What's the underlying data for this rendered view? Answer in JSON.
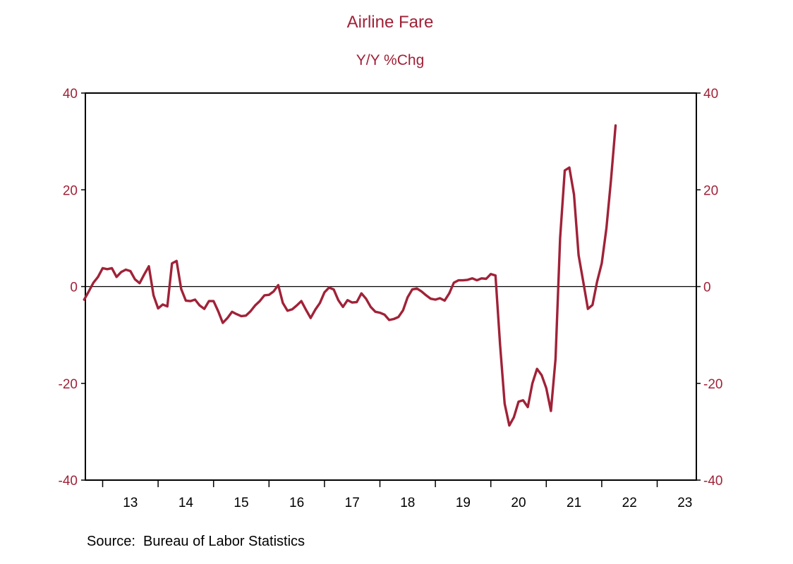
{
  "chart_data": {
    "type": "line",
    "title": "Airline Fare",
    "subtitle": "Y/Y %Chg",
    "source": "Source:  Bureau of Labor Statistics",
    "color": "#a02238",
    "zero_line": true,
    "grid": false,
    "ylim": [
      -40,
      40
    ],
    "y_ticks": [
      -40,
      -20,
      0,
      20,
      40
    ],
    "y_tick_labels": [
      "-40",
      "-20",
      "0",
      "20",
      "40"
    ],
    "x_labels": [
      "13",
      "14",
      "15",
      "16",
      "17",
      "18",
      "19",
      "20",
      "21",
      "22",
      "23"
    ],
    "x_start": "2012-09",
    "series": [
      {
        "values": [
          -2.7,
          -1.0,
          0.8,
          2.0,
          3.8,
          3.6,
          3.8,
          2.0,
          3.0,
          3.5,
          3.2,
          1.5,
          0.7,
          2.5,
          4.2,
          -1.8,
          -4.5,
          -3.7,
          -4.1,
          4.8,
          5.3,
          -0.5,
          -2.9,
          -3.0,
          -2.7,
          -3.9,
          -4.6,
          -3.0,
          -3.0,
          -5.1,
          -7.5,
          -6.5,
          -5.2,
          -5.7,
          -6.1,
          -6.0,
          -5.1,
          -3.9,
          -3.0,
          -1.8,
          -1.7,
          -1.0,
          0.3,
          -3.4,
          -5.0,
          -4.7,
          -3.9,
          -3.0,
          -4.8,
          -6.5,
          -4.8,
          -3.4,
          -1.2,
          -0.2,
          -0.6,
          -2.8,
          -4.2,
          -2.8,
          -3.3,
          -3.2,
          -1.4,
          -2.5,
          -4.2,
          -5.2,
          -5.4,
          -5.8,
          -6.9,
          -6.7,
          -6.3,
          -4.9,
          -2.2,
          -0.6,
          -0.4,
          -1.0,
          -1.8,
          -2.5,
          -2.7,
          -2.4,
          -2.9,
          -1.4,
          0.8,
          1.3,
          1.3,
          1.4,
          1.7,
          1.3,
          1.7,
          1.6,
          2.6,
          2.3,
          -12.0,
          -24.2,
          -28.7,
          -27.0,
          -23.8,
          -23.5,
          -24.9,
          -20.0,
          -17.0,
          -18.3,
          -21.0,
          -25.7,
          -15.0,
          10.0,
          24.0,
          24.6,
          19.0,
          6.5,
          1.0,
          -4.6,
          -3.8,
          1.0,
          4.8,
          12.0,
          22.0,
          33.3
        ]
      }
    ]
  }
}
